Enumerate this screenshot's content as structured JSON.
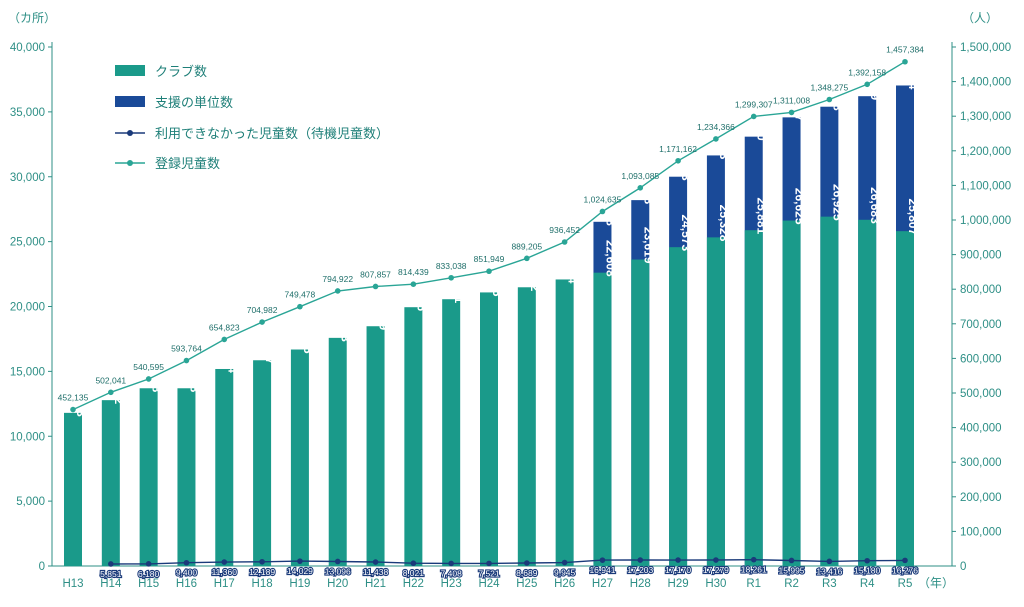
{
  "chart_data": {
    "type": "bar+line",
    "left_axis_unit": "（カ所）",
    "right_axis_unit": "（人）",
    "x_axis_suffix": "（年）",
    "categories": [
      "H13",
      "H14",
      "H15",
      "H16",
      "H17",
      "H18",
      "H19",
      "H20",
      "H21",
      "H22",
      "H23",
      "H24",
      "H25",
      "H26",
      "H27",
      "H28",
      "H29",
      "H30",
      "R1",
      "R2",
      "R3",
      "R4",
      "R5"
    ],
    "left_ylim": [
      0,
      40000
    ],
    "left_yticks": [
      "0",
      "5,000",
      "10,000",
      "15,000",
      "20,000",
      "25,000",
      "30,000",
      "35,000",
      "40,000"
    ],
    "right_ylim": [
      0,
      1500000
    ],
    "right_yticks": [
      "0",
      "100,000",
      "200,000",
      "300,000",
      "400,000",
      "500,000",
      "600,000",
      "700,000",
      "800,000",
      "900,000",
      "1,000,000",
      "1,100,000",
      "1,200,000",
      "1,300,000",
      "1,400,000",
      "1,500,000"
    ],
    "series": [
      {
        "name": "クラブ数",
        "kind": "bar",
        "axis": "left",
        "color": "#1a9a8a",
        "values": [
          11803,
          12782,
          13698,
          13698,
          15184,
          15857,
          16685,
          17583,
          18479,
          19946,
          20561,
          21085,
          21482,
          22084,
          22608,
          23619,
          24573,
          25328,
          25881,
          26625,
          26925,
          26683,
          25807
        ],
        "labels": [
          "11,803",
          "12,782",
          "13,698",
          "13,698",
          "15,184",
          "15,857",
          "16,685",
          "17,583",
          "18,479",
          "19,946",
          "20,561",
          "21,085",
          "21,482",
          "22,084",
          "22,608",
          "23,619",
          "24,573",
          "25,328",
          "25,881",
          "26,625",
          "26,925",
          "26,683",
          "25,807"
        ]
      },
      {
        "name": "支援の単位数",
        "kind": "bar",
        "axis": "left",
        "color": "#1a4a98",
        "values": [
          null,
          null,
          null,
          null,
          null,
          null,
          null,
          null,
          null,
          null,
          null,
          null,
          null,
          null,
          26528,
          28198,
          30003,
          31643,
          33090,
          34577,
          35398,
          36209,
          37034
        ],
        "labels": [
          "",
          "",
          "",
          "",
          "",
          "",
          "",
          "",
          "",
          "",
          "",
          "",
          "",
          "",
          "26,528",
          "28,198",
          "30,003",
          "31,643",
          "33,090",
          "34,577",
          "35,398",
          "36,209",
          "37,034"
        ]
      },
      {
        "name": "利用できなかった児童数（待機児童数）",
        "kind": "line",
        "axis": "right",
        "color": "#1a3a7a",
        "values": [
          null,
          5851,
          6180,
          9400,
          11360,
          12189,
          14029,
          13096,
          11438,
          8021,
          7408,
          7521,
          8689,
          9945,
          16941,
          17203,
          17170,
          17279,
          18261,
          15995,
          13416,
          15180,
          16276
        ],
        "labels": [
          "",
          "5,851",
          "6,180",
          "9,400",
          "11,360",
          "12,189",
          "14,029",
          "13,096",
          "11,438",
          "8,021",
          "7,408",
          "7,521",
          "8,689",
          "9,945",
          "16,941",
          "17,203",
          "17,170",
          "17,279",
          "18,261",
          "15,995",
          "13,416",
          "15,180",
          "16,276"
        ]
      },
      {
        "name": "登録児童数",
        "kind": "line",
        "axis": "right",
        "color": "#2aa596",
        "values": [
          452135,
          502041,
          540595,
          593764,
          654823,
          704982,
          749478,
          794922,
          807857,
          814439,
          833038,
          851949,
          889205,
          936452,
          1024635,
          1093085,
          1171162,
          1234366,
          1299307,
          1311008,
          1348275,
          1392158,
          1457384
        ],
        "labels": [
          "452,135",
          "502,041",
          "540,595",
          "593,764",
          "654,823",
          "704,982",
          "749,478",
          "794,922",
          "807,857",
          "814,439",
          "833,038",
          "851,949",
          "889,205",
          "936,452",
          "1,024,635",
          "1,093,085",
          "1,171,162",
          "1,234,366",
          "1,299,307",
          "1,311,008",
          "1,348,275",
          "1,392,158",
          "1,457,384"
        ]
      }
    ]
  }
}
